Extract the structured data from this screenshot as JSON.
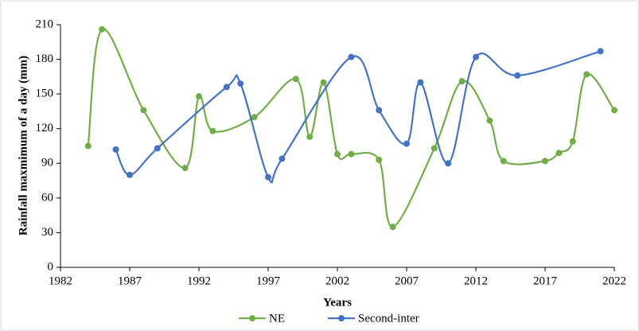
{
  "chart_data": {
    "type": "line",
    "x_label": "Years",
    "y_label": "Rainfall maxmimum of a day (mm)",
    "xlim": [
      1982,
      2022
    ],
    "xticks": [
      1982,
      1987,
      1992,
      1997,
      2002,
      2007,
      2012,
      2017,
      2022
    ],
    "ylim": [
      0,
      210
    ],
    "yticks": [
      0,
      30,
      60,
      90,
      120,
      150,
      180,
      210
    ],
    "grid": false,
    "legend": "bottom",
    "series": [
      {
        "name": "NE",
        "color": "#70ad47",
        "x": [
          1984,
          1985,
          1988,
          1991,
          1992,
          1993,
          1996,
          1999,
          2000,
          2001,
          2002,
          2003,
          2005,
          2006,
          2009,
          2011,
          2013,
          2014,
          2017,
          2018,
          2019,
          2020,
          2022
        ],
        "values": [
          105,
          206,
          136,
          86,
          148,
          118,
          130,
          163,
          113,
          160,
          98,
          98,
          93,
          35,
          103,
          161,
          127,
          92,
          92,
          99,
          109,
          167,
          136
        ]
      },
      {
        "name": "Second-inter",
        "color": "#4472c4",
        "x": [
          1986,
          1987,
          1989,
          1994,
          1995,
          1997,
          1998,
          2003,
          2005,
          2007,
          2008,
          2010,
          2012,
          2015,
          2021
        ],
        "values": [
          102,
          80,
          103,
          156,
          159,
          78,
          94,
          182,
          136,
          107,
          160,
          90,
          182,
          166,
          187
        ]
      }
    ]
  }
}
